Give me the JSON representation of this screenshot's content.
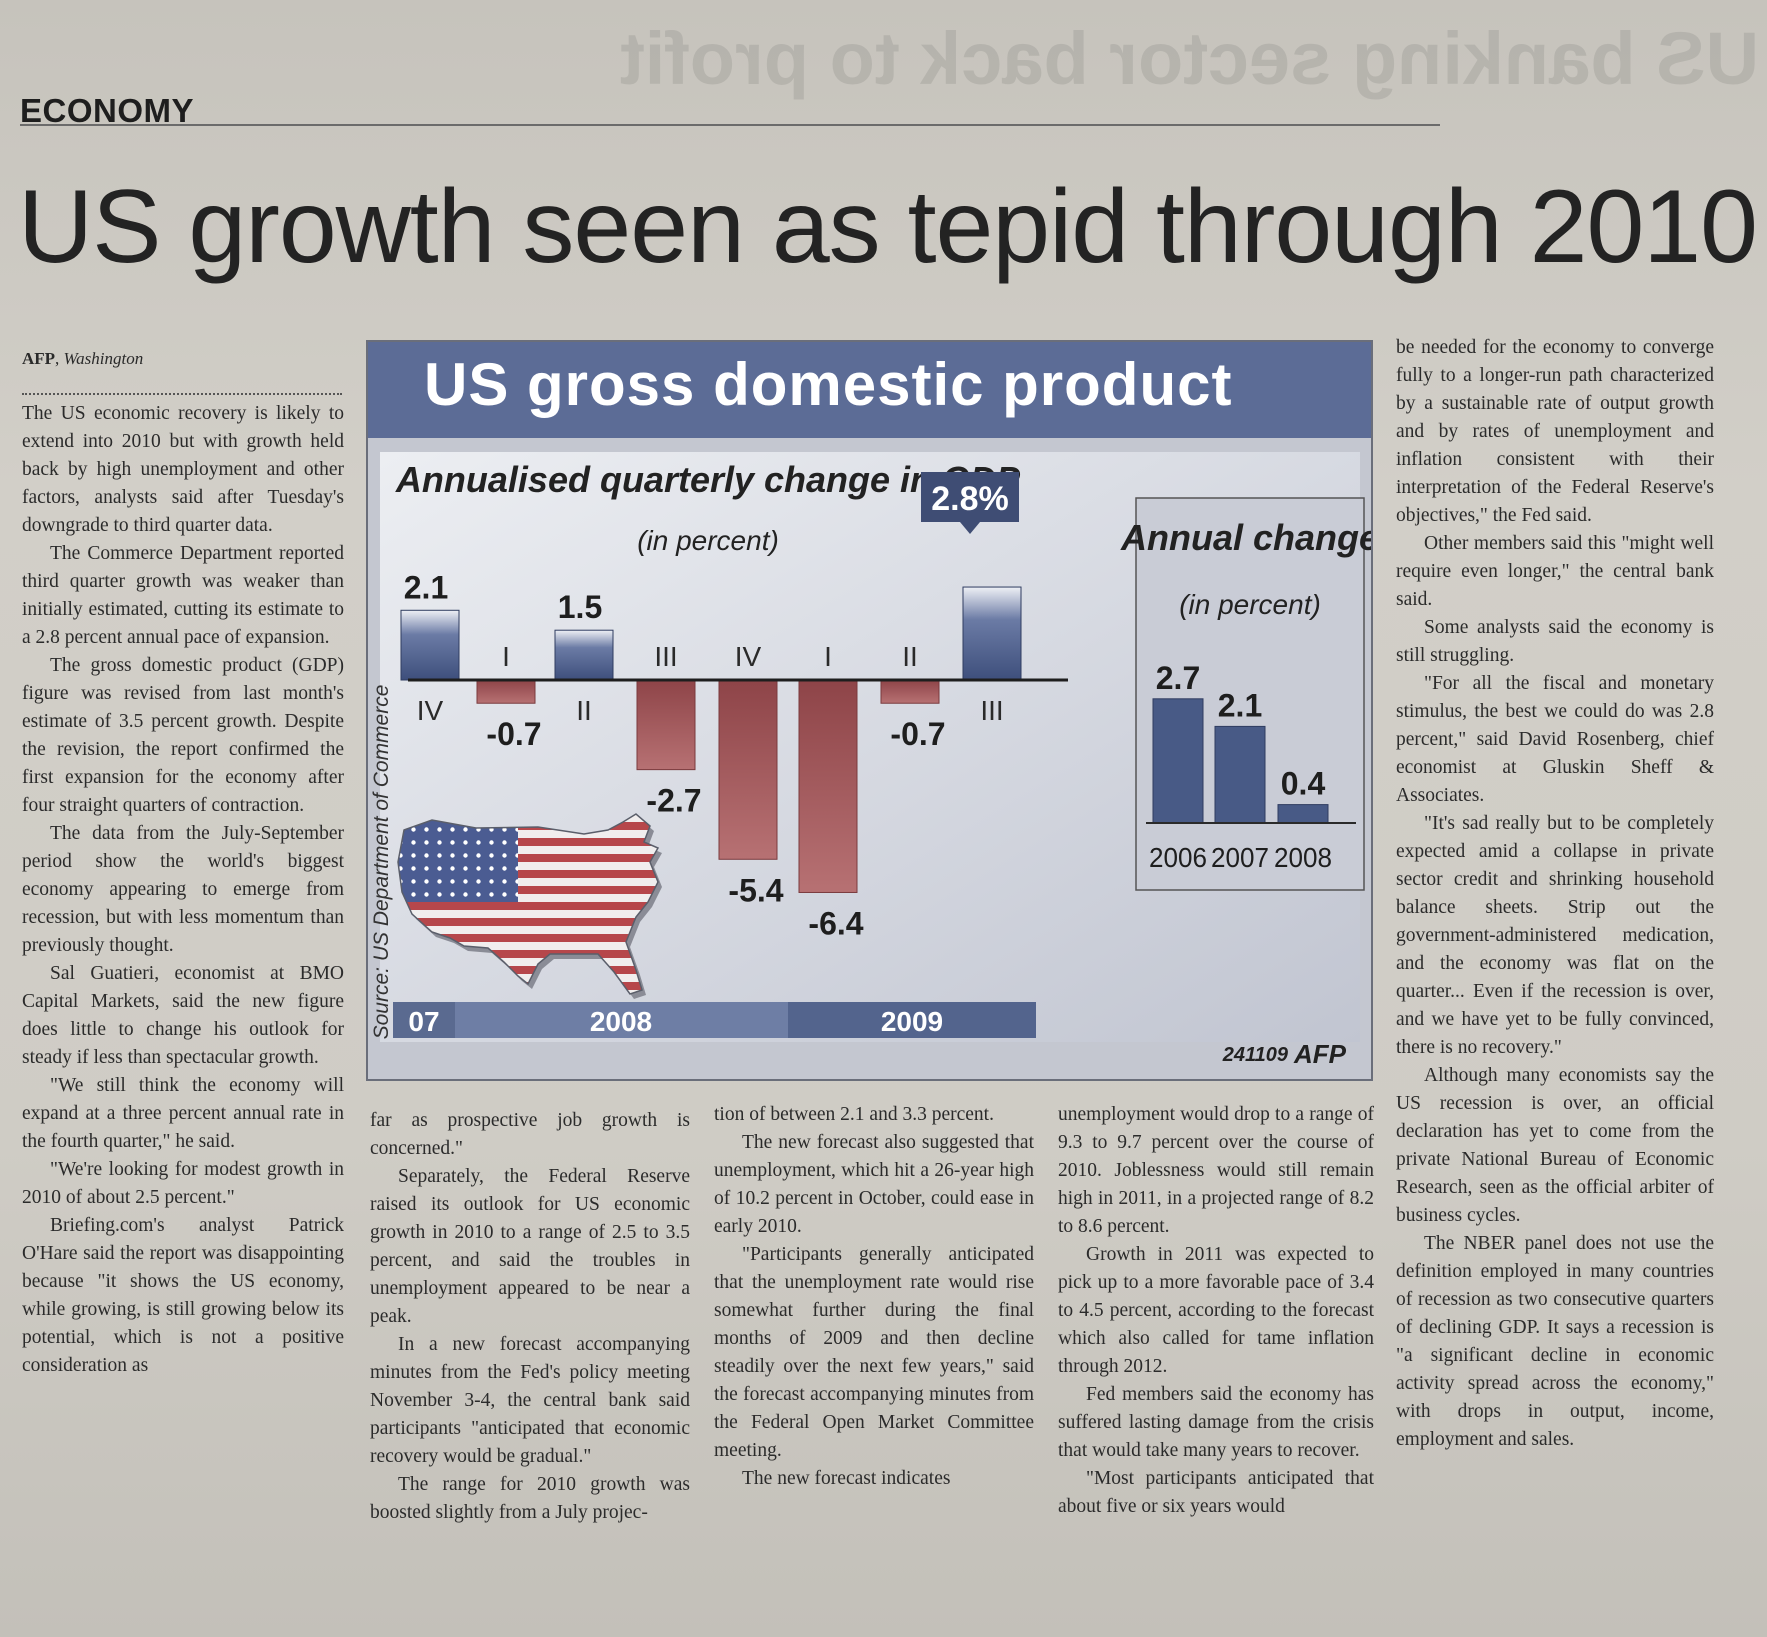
{
  "section": "ECONOMY",
  "ghost_headline": "US banking sector back to profit",
  "headline": "US growth seen as tepid through 2010",
  "dateline": {
    "agency": "AFP",
    "city": "Washington"
  },
  "article": {
    "col1": [
      "The US economic recovery is likely to extend into 2010 but with growth held back by high unemployment and other factors, analysts said after Tuesday's downgrade to third quarter data.",
      "The Commerce Department reported third quarter growth was weaker than initially estimated, cutting its estimate to a 2.8 percent annual pace of expansion.",
      "The gross domestic product (GDP) figure was revised from last month's estimate of 3.5 percent growth. Despite the revision, the report confirmed the first expansion for the economy after four straight quarters of contraction.",
      "The data from the July-September period show the world's biggest economy appearing to emerge from recession, but with less momentum than previously thought.",
      "Sal Guatieri, economist at BMO Capital Markets, said the new figure does little to change his outlook for steady if less than spectacular growth.",
      "\"We still think the economy will expand at a three percent annual rate in the fourth quarter,\" he said.",
      "\"We're looking for modest growth in 2010 of about 2.5 percent.\"",
      "Briefing.com's analyst Patrick O'Hare said the report was disappointing because \"it shows the US economy, while growing, is still growing below its potential, which is not a positive consideration as"
    ],
    "col2": [
      "far as prospective job growth is concerned.\"",
      "Separately, the Federal Reserve raised its outlook for US economic growth in 2010 to a range of 2.5 to 3.5 percent, and said the troubles in unemployment appeared to be near a peak.",
      "In a new forecast accompanying minutes from the Fed's policy meeting November 3-4, the central bank said participants \"anticipated that economic recovery would be gradual.\"",
      "The range for 2010 growth was boosted slightly from a July projec-"
    ],
    "col3": [
      "tion of between 2.1 and 3.3 percent.",
      "The new forecast also suggested that unemployment, which hit a 26-year high of 10.2 percent in October, could ease in early 2010.",
      "\"Participants generally anticipated that the unemployment rate would rise somewhat further during the final months of 2009 and then decline steadily over the next few years,\" said the forecast accompanying minutes from the Federal Open Market Committee meeting.",
      "The new forecast indicates"
    ],
    "col4": [
      "unemployment would drop to a range of 9.3 to 9.7 percent over the course of 2010. Joblessness would still remain high in 2011, in a projected range of 8.2 to 8.6 percent.",
      "Growth in 2011 was expected to pick up to a more favorable pace of 3.4 to 4.5 percent, according to the forecast which also called for tame inflation through 2012.",
      "Fed members said the economy has suffered lasting damage from the crisis that would take many years to recover.",
      "\"Most participants anticipated that about five or six years would"
    ],
    "col5": [
      "be needed for the economy to converge fully to a longer-run path characterized by a sustainable rate of output growth and by rates of unemployment and inflation consistent with their interpretation of the Federal Reserve's objectives,\" the Fed said.",
      "Other members said this \"might well require even longer,\" the central bank said.",
      "Some analysts said the economy is still struggling.",
      "\"For all the fiscal and monetary stimulus, the best we could do was 2.8 percent,\" said David Rosenberg, chief economist at Gluskin Sheff & Associates.",
      "\"It's sad really but to be completely expected amid a collapse in private sector credit and shrinking household balance sheets. Strip out the government-administered medication, and the economy was flat on the quarter... Even if the recession is over, and we have yet to be fully convinced, there is no recovery.\"",
      "Although many economists say the US recession is over, an official declaration has yet to come from the private National Bureau of Economic Research, seen as the official arbiter of business cycles.",
      "The NBER panel does not use the definition employed in many countries of recession as two consecutive quarters of declining GDP. It says a recession is \"a significant decline in economic activity spread across the economy,\" with drops in output, income, employment and sales."
    ]
  },
  "chart_data": [
    {
      "type": "bar",
      "title": "US gross domestic product",
      "subtitle": "Annualised quarterly change in GDP",
      "unit_label": "(in percent)",
      "categories": [
        "IV",
        "I",
        "II",
        "III",
        "IV",
        "I",
        "II",
        "III"
      ],
      "years": [
        "07",
        "2008",
        "2009"
      ],
      "values": [
        2.1,
        -0.7,
        1.5,
        -2.7,
        -5.4,
        -6.4,
        -0.7,
        2.8
      ],
      "value_labels": [
        "2.1",
        "-0.7",
        "1.5",
        "-2.7",
        "-5.4",
        "-6.4",
        "-0.7",
        "2.8%"
      ],
      "highlight_label": "2.8%",
      "source": "Source: US Department of Commerce",
      "ylim": [
        -6.4,
        2.8
      ],
      "credit": "241109",
      "agency": "AFP"
    },
    {
      "type": "bar",
      "title": "Annual change",
      "unit_label": "(in percent)",
      "categories": [
        "2006",
        "2007",
        "2008"
      ],
      "values": [
        2.7,
        2.1,
        0.4
      ],
      "value_labels": [
        "2.7",
        "2.1",
        "0.4"
      ]
    }
  ],
  "colors": {
    "positive_bar": "#485a86",
    "negative_bar": "#a25a5c",
    "title_bar": "#5c6c96",
    "year_bar": "#5a6a90"
  }
}
